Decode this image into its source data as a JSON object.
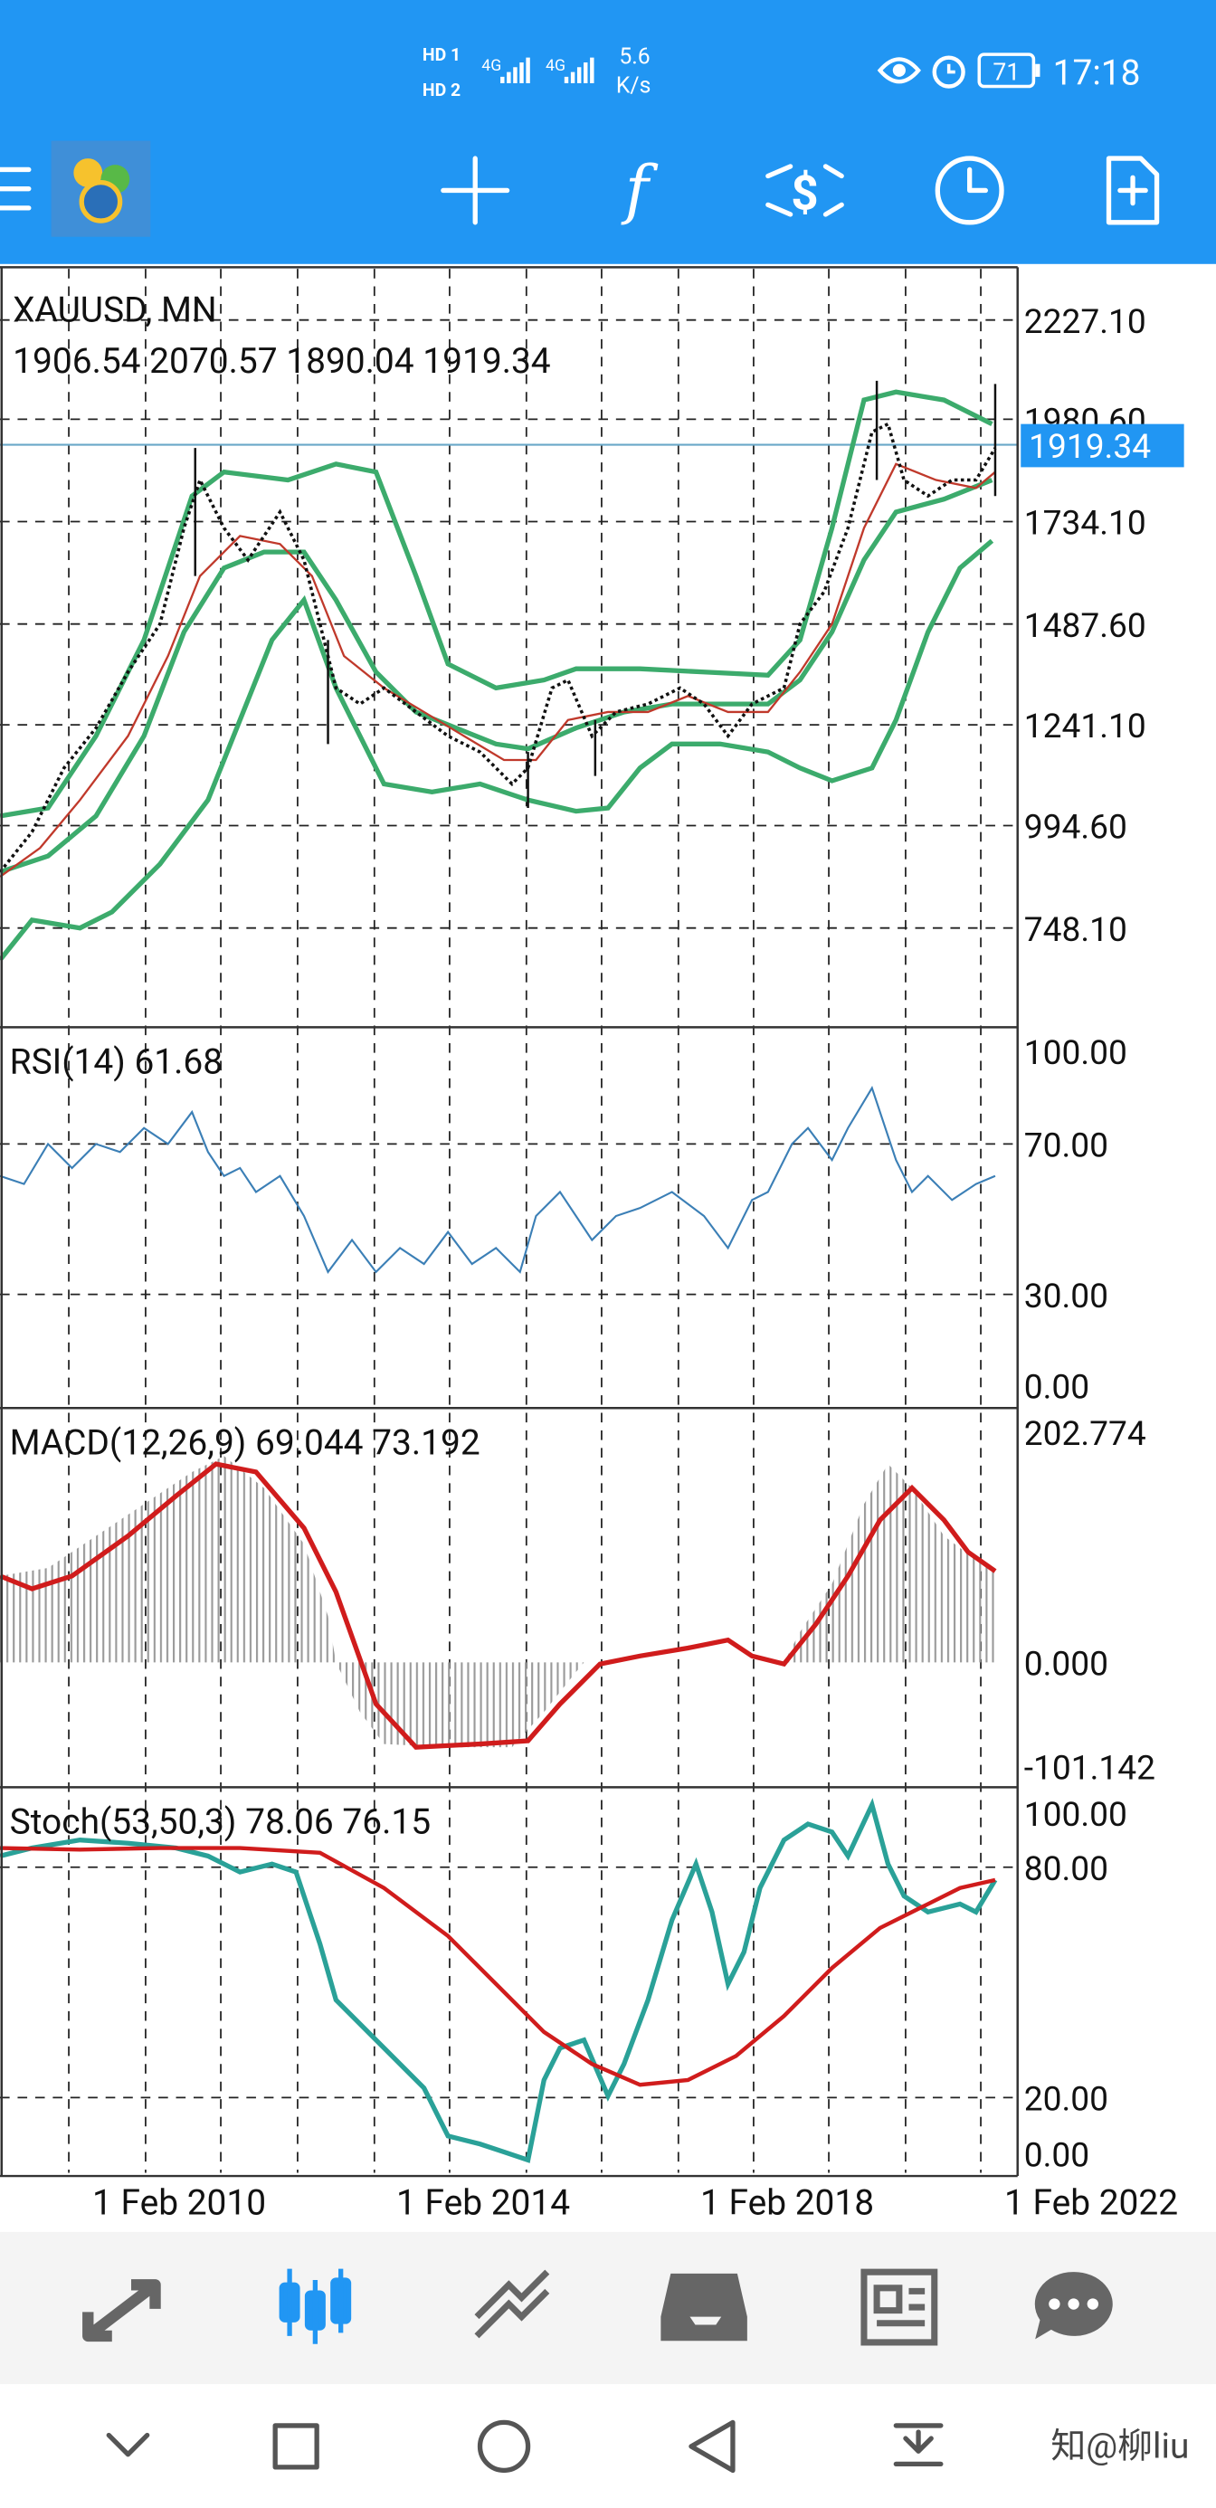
{
  "status_bar": {
    "sim": [
      "HD 1",
      "HD 2"
    ],
    "network": [
      "4G",
      "4G"
    ],
    "speed": "5.6",
    "speed_unit": "K/s",
    "battery": "71",
    "time": "17:18"
  },
  "toolbar": {
    "function_icon": "f"
  },
  "chart": {
    "symbol": "XAUUSD, MN",
    "ohlc": "1906.54 2070.57 1890.04 1919.34",
    "price_ticks": [
      "2227.10",
      "1980.60",
      "1734.10",
      "1487.60",
      "1241.10",
      "994.60",
      "748.10"
    ],
    "current_price": "1919.34"
  },
  "rsi": {
    "label": "RSI(14) 61.68",
    "ticks": [
      "100.00",
      "70.00",
      "30.00",
      "0.00"
    ]
  },
  "macd": {
    "label": "MACD(12,26,9) 69.044 73.192",
    "ticks": [
      "202.774",
      "0.000",
      "-101.142"
    ]
  },
  "stoch": {
    "label": "Stoch(53,50,3) 78.06 76.15",
    "ticks": [
      "100.00",
      "80.00",
      "20.00",
      "0.00"
    ]
  },
  "x_labels": [
    "1 Feb 2010",
    "1 Feb 2014",
    "1 Feb 2018",
    "1 Feb 2022"
  ],
  "watermark": "知@柳liu"
}
